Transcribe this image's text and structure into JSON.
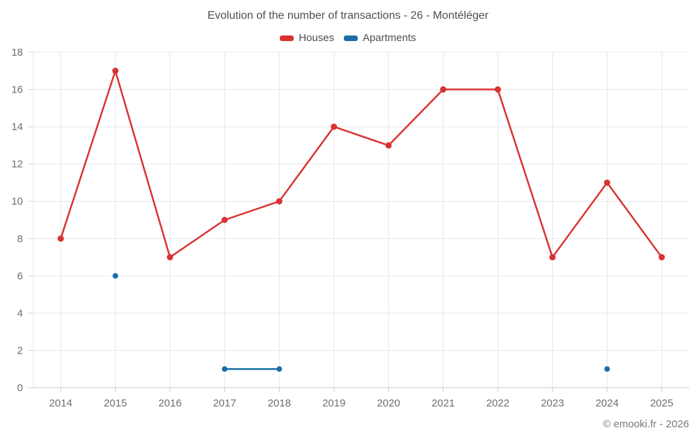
{
  "page": {
    "title": "Evolution of the number of transactions - 26 - Montéléger",
    "footer": "© emooki.fr - 2026"
  },
  "legend": {
    "items": [
      {
        "label": "Houses",
        "color": "#d93232"
      },
      {
        "label": "Apartments",
        "color": "#1a6fa8"
      }
    ]
  },
  "chart_data": {
    "type": "line",
    "title": "Evolution of the number of transactions - 26 - Montéléger",
    "categories": [
      "2014",
      "2015",
      "2016",
      "2017",
      "2018",
      "2019",
      "2020",
      "2021",
      "2022",
      "2023",
      "2024",
      "2025"
    ],
    "series": [
      {
        "name": "Houses",
        "color": "#d93232",
        "values": [
          8,
          17,
          7,
          9,
          10,
          14,
          13,
          16,
          16,
          7,
          11,
          7
        ]
      },
      {
        "name": "Apartments",
        "color": "#1a6fa8",
        "values": [
          null,
          6,
          null,
          1,
          1,
          null,
          null,
          null,
          null,
          null,
          1,
          null
        ]
      }
    ],
    "xlabel": "",
    "ylabel": "",
    "ylim": [
      0,
      18
    ],
    "ytick_step": 2,
    "grid": true,
    "legend_position": "top",
    "style": {
      "grid_color": "#e7e7e7",
      "axis_line_color": "#cccccc",
      "tick_color": "#cccccc",
      "label_color": "#6e6e6e",
      "label_font_size": 15
    }
  }
}
